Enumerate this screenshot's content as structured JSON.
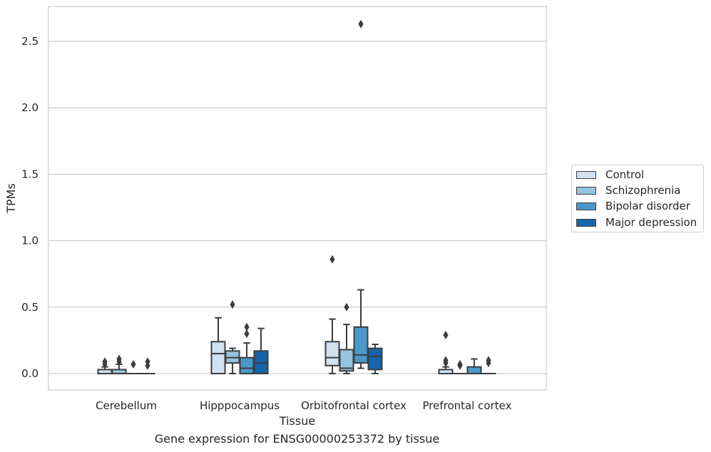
{
  "chart_data": {
    "type": "boxplot",
    "xlabel": "Tissue",
    "ylabel": "TPMs",
    "caption": "Gene expression for ENSG00000253372 by tissue",
    "categories": [
      "Cerebellum",
      "Hipppocampus",
      "Orbitofrontal cortex",
      "Prefrontal cortex"
    ],
    "yticks": [
      "0.0",
      "0.5",
      "1.0",
      "1.5",
      "2.0",
      "2.5"
    ],
    "ytick_values": [
      0.0,
      0.5,
      1.0,
      1.5,
      2.0,
      2.5
    ],
    "ylim": [
      -0.13,
      2.77
    ],
    "grid": "horizontal",
    "legend_position": "right",
    "series": [
      {
        "name": "Control",
        "color": "#d0e1f2",
        "boxes": [
          {
            "whislo": 0.0,
            "q1": 0.0,
            "med": 0.0,
            "q3": 0.03,
            "whishi": 0.05,
            "fliers": [
              0.07,
              0.09
            ]
          },
          {
            "whislo": 0.0,
            "q1": 0.0,
            "med": 0.15,
            "q3": 0.24,
            "whishi": 0.42,
            "fliers": []
          },
          {
            "whislo": 0.0,
            "q1": 0.06,
            "med": 0.12,
            "q3": 0.24,
            "whishi": 0.41,
            "fliers": [
              0.86
            ]
          },
          {
            "whislo": 0.0,
            "q1": 0.0,
            "med": 0.0,
            "q3": 0.03,
            "whishi": 0.05,
            "fliers": [
              0.08,
              0.1,
              0.29
            ]
          }
        ]
      },
      {
        "name": "Schizophrenia",
        "color": "#94c4df",
        "boxes": [
          {
            "whislo": 0.0,
            "q1": 0.0,
            "med": 0.0,
            "q3": 0.03,
            "whishi": 0.07,
            "fliers": [
              0.09,
              0.11
            ]
          },
          {
            "whislo": 0.0,
            "q1": 0.08,
            "med": 0.12,
            "q3": 0.17,
            "whishi": 0.19,
            "fliers": [
              0.52
            ]
          },
          {
            "whislo": 0.0,
            "q1": 0.02,
            "med": 0.04,
            "q3": 0.18,
            "whishi": 0.37,
            "fliers": [
              0.5
            ]
          },
          {
            "whislo": 0.0,
            "q1": 0.0,
            "med": 0.0,
            "q3": 0.0,
            "whishi": 0.0,
            "fliers": [
              0.06,
              0.07
            ]
          }
        ]
      },
      {
        "name": "Bipolar disorder",
        "color": "#4a98c9",
        "boxes": [
          {
            "whislo": 0.0,
            "q1": 0.0,
            "med": 0.0,
            "q3": 0.0,
            "whishi": 0.0,
            "fliers": [
              0.07
            ]
          },
          {
            "whislo": 0.0,
            "q1": 0.0,
            "med": 0.04,
            "q3": 0.12,
            "whishi": 0.23,
            "fliers": [
              0.3,
              0.35
            ]
          },
          {
            "whislo": 0.04,
            "q1": 0.08,
            "med": 0.14,
            "q3": 0.35,
            "whishi": 0.63,
            "fliers": [
              2.63
            ]
          },
          {
            "whislo": 0.0,
            "q1": 0.0,
            "med": 0.0,
            "q3": 0.05,
            "whishi": 0.11,
            "fliers": []
          }
        ]
      },
      {
        "name": "Major depression",
        "color": "#1764ab",
        "boxes": [
          {
            "whislo": 0.0,
            "q1": 0.0,
            "med": 0.0,
            "q3": 0.0,
            "whishi": 0.0,
            "fliers": [
              0.06,
              0.09
            ]
          },
          {
            "whislo": 0.0,
            "q1": 0.0,
            "med": 0.08,
            "q3": 0.17,
            "whishi": 0.34,
            "fliers": []
          },
          {
            "whislo": 0.0,
            "q1": 0.03,
            "med": 0.13,
            "q3": 0.19,
            "whishi": 0.22,
            "fliers": []
          },
          {
            "whislo": 0.0,
            "q1": 0.0,
            "med": 0.0,
            "q3": 0.0,
            "whishi": 0.0,
            "fliers": [
              0.08,
              0.1
            ]
          }
        ]
      }
    ]
  }
}
